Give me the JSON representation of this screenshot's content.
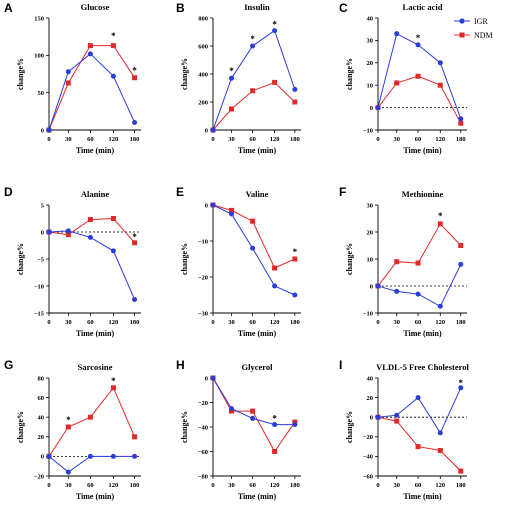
{
  "legend": [
    {
      "name": "IGR",
      "color": "#2b3cd8",
      "marker": "circle"
    },
    {
      "name": "NDM",
      "color": "#e02a2a",
      "marker": "square"
    }
  ],
  "chart_data": [
    {
      "letter": "A",
      "type": "line",
      "title": "Glucose",
      "xlabel": "Time (min)",
      "ylabel": "change%",
      "x": [
        0,
        30,
        60,
        120,
        180
      ],
      "ylim": [
        0,
        150
      ],
      "yticks": [
        0,
        50,
        100,
        150
      ],
      "baseline": false,
      "series": [
        {
          "name": "IGR",
          "values": [
            0,
            78,
            102,
            72,
            10
          ]
        },
        {
          "name": "NDM",
          "values": [
            0,
            63,
            113,
            113,
            70
          ]
        }
      ],
      "significance": [
        {
          "x": 120,
          "y": 126,
          "text": "*"
        },
        {
          "x": 180,
          "y": 80,
          "text": "*"
        }
      ]
    },
    {
      "letter": "B",
      "type": "line",
      "title": "Insulin",
      "xlabel": "Time (min)",
      "ylabel": "change%",
      "x": [
        0,
        30,
        60,
        120,
        180
      ],
      "ylim": [
        0,
        800
      ],
      "yticks": [
        0,
        200,
        400,
        600,
        800
      ],
      "baseline": false,
      "series": [
        {
          "name": "IGR",
          "values": [
            0,
            370,
            600,
            710,
            290
          ]
        },
        {
          "name": "NDM",
          "values": [
            0,
            150,
            280,
            340,
            200
          ]
        }
      ],
      "significance": [
        {
          "x": 30,
          "y": 420,
          "text": "*"
        },
        {
          "x": 60,
          "y": 650,
          "text": "*"
        },
        {
          "x": 120,
          "y": 755,
          "text": "*"
        }
      ]
    },
    {
      "letter": "C",
      "type": "line",
      "title": "Lactic acid",
      "xlabel": "Time (min)",
      "ylabel": "change%",
      "x": [
        0,
        30,
        60,
        120,
        180
      ],
      "ylim": [
        -10,
        40
      ],
      "yticks": [
        -10,
        0,
        10,
        20,
        30,
        40
      ],
      "baseline": true,
      "series": [
        {
          "name": "IGR",
          "values": [
            0,
            33,
            28,
            20,
            -5
          ]
        },
        {
          "name": "NDM",
          "values": [
            0,
            11,
            14,
            10,
            -7
          ]
        }
      ],
      "significance": [
        {
          "x": 60,
          "y": 31,
          "text": "*"
        }
      ]
    },
    {
      "letter": "D",
      "type": "line",
      "title": "Alanine",
      "xlabel": "Time (min)",
      "ylabel": "change%",
      "x": [
        0,
        30,
        60,
        120,
        180
      ],
      "ylim": [
        -15,
        5
      ],
      "yticks": [
        -15,
        -10,
        -5,
        0,
        5
      ],
      "baseline": true,
      "series": [
        {
          "name": "IGR",
          "values": [
            0,
            0.2,
            -1,
            -3.5,
            -12.5
          ]
        },
        {
          "name": "NDM",
          "values": [
            0,
            -0.5,
            2.3,
            2.5,
            -2
          ]
        }
      ],
      "significance": [
        {
          "x": 180,
          "y": -0.9,
          "text": "*"
        }
      ]
    },
    {
      "letter": "E",
      "type": "line",
      "title": "Valine",
      "xlabel": "Time (min)",
      "ylabel": "change%",
      "x": [
        0,
        30,
        60,
        120,
        180
      ],
      "ylim": [
        -30,
        0
      ],
      "yticks": [
        -30,
        -20,
        -10,
        0
      ],
      "baseline": false,
      "series": [
        {
          "name": "IGR",
          "values": [
            0,
            -2.5,
            -12,
            -22.5,
            -25
          ]
        },
        {
          "name": "NDM",
          "values": [
            0,
            -1.5,
            -4.5,
            -17.5,
            -15
          ]
        }
      ],
      "significance": [
        {
          "x": 180,
          "y": -13,
          "text": "*"
        }
      ]
    },
    {
      "letter": "F",
      "type": "line",
      "title": "Methionine",
      "xlabel": "Time (min)",
      "ylabel": "change%",
      "x": [
        0,
        30,
        60,
        120,
        180
      ],
      "ylim": [
        -10,
        30
      ],
      "yticks": [
        -10,
        0,
        10,
        20,
        30
      ],
      "baseline": true,
      "series": [
        {
          "name": "IGR",
          "values": [
            0,
            -2,
            -3,
            -7.5,
            8
          ]
        },
        {
          "name": "NDM",
          "values": [
            0,
            9,
            8.5,
            23,
            15
          ]
        }
      ],
      "significance": [
        {
          "x": 120,
          "y": 26,
          "text": "*"
        }
      ]
    },
    {
      "letter": "G",
      "type": "line",
      "title": "Sarcosine",
      "xlabel": "Time (min)",
      "ylabel": "change%",
      "x": [
        0,
        30,
        60,
        120,
        180
      ],
      "ylim": [
        -20,
        80
      ],
      "yticks": [
        -20,
        0,
        20,
        40,
        60,
        80
      ],
      "baseline": true,
      "series": [
        {
          "name": "IGR",
          "values": [
            0,
            -16,
            0,
            0,
            0
          ]
        },
        {
          "name": "NDM",
          "values": [
            0,
            30,
            40,
            70,
            20
          ]
        }
      ],
      "significance": [
        {
          "x": 30,
          "y": 37,
          "text": "*"
        },
        {
          "x": 120,
          "y": 77,
          "text": "*"
        }
      ]
    },
    {
      "letter": "H",
      "type": "line",
      "title": "Glycerol",
      "xlabel": "Time (min)",
      "ylabel": "change%",
      "x": [
        0,
        30,
        60,
        120,
        180
      ],
      "ylim": [
        -80,
        0
      ],
      "yticks": [
        -80,
        -60,
        -40,
        -20,
        0
      ],
      "baseline": false,
      "series": [
        {
          "name": "IGR",
          "values": [
            0,
            -25,
            -33,
            -38,
            -38
          ]
        },
        {
          "name": "NDM",
          "values": [
            0,
            -27,
            -27,
            -60,
            -36
          ]
        }
      ],
      "significance": [
        {
          "x": 120,
          "y": -33,
          "text": "*"
        }
      ]
    },
    {
      "letter": "I",
      "type": "line",
      "title": "VLDL-5 Free Cholesterol",
      "xlabel": "Time (min)",
      "ylabel": "change%",
      "x": [
        0,
        30,
        60,
        120,
        180
      ],
      "ylim": [
        -60,
        40
      ],
      "yticks": [
        -60,
        -40,
        -20,
        0,
        20,
        40
      ],
      "baseline": true,
      "series": [
        {
          "name": "IGR",
          "values": [
            0,
            2,
            20,
            -16,
            30
          ]
        },
        {
          "name": "NDM",
          "values": [
            0,
            -4,
            -30,
            -34,
            -55
          ]
        }
      ],
      "significance": [
        {
          "x": 180,
          "y": 35,
          "text": "*"
        }
      ]
    }
  ]
}
